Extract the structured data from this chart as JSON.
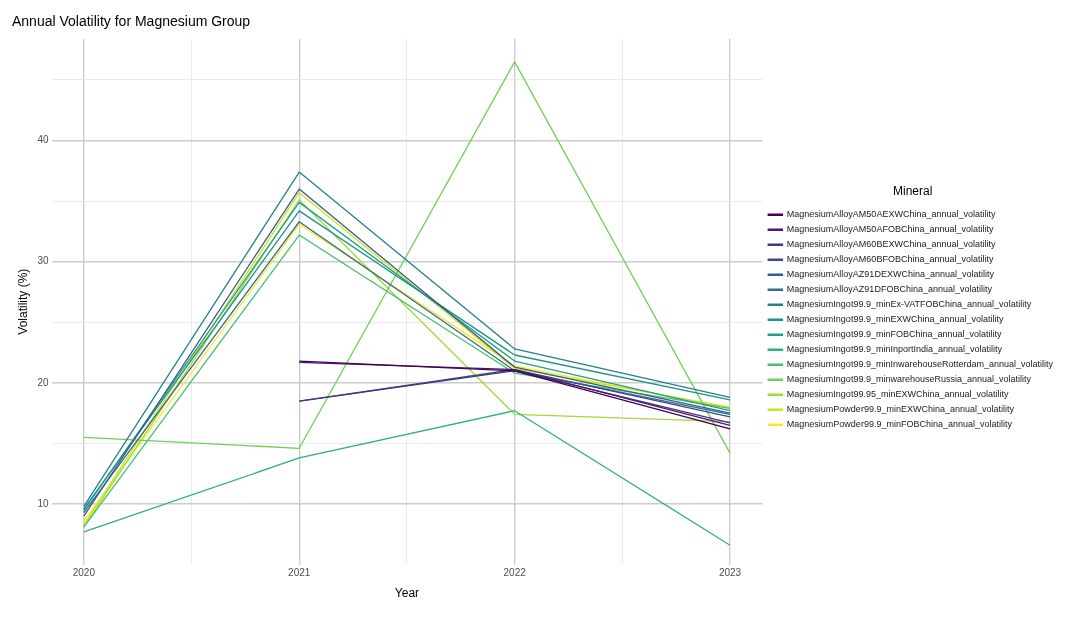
{
  "chart_data": {
    "type": "line",
    "title": "Annual Volatility for Magnesium Group",
    "xlabel": "Year",
    "ylabel": "Volatility (%)",
    "legend_title": "Mineral",
    "legend": "right",
    "grid": true,
    "marker": "none",
    "line_style": "solid",
    "xlim": [
      2019.85,
      2023.15
    ],
    "xticks": [
      2020,
      {
        "value": 2020.5,
        "label": null
      },
      2021,
      {
        "value": 2021.5,
        "label": null
      },
      2022,
      {
        "value": 2022.5,
        "label": null
      },
      2023
    ],
    "ylim": [
      5.0,
      48.4
    ],
    "yticks": [
      10,
      {
        "value": 15,
        "label": null
      },
      20,
      {
        "value": 25,
        "label": null
      },
      30,
      {
        "value": 35,
        "label": null
      },
      40,
      {
        "value": 45,
        "label": null
      }
    ],
    "x": [
      2020,
      2021,
      2022,
      2023
    ],
    "series": [
      {
        "name": "MagnesiumAlloyAM50AEXWChina_annual_volatility",
        "color": "#440154",
        "values": [
          null,
          21.8,
          21.0,
          16.2
        ]
      },
      {
        "name": "MagnesiumAlloyAM50AFOBChina_annual_volatility",
        "color": "#481b6d",
        "values": [
          null,
          21.7,
          21.1,
          16.5
        ]
      },
      {
        "name": "MagnesiumAlloyAM60BEXWChina_annual_volatility",
        "color": "#46337e",
        "values": [
          null,
          18.5,
          21.0,
          16.7
        ]
      },
      {
        "name": "MagnesiumAlloyAM60BFOBChina_annual_volatility",
        "color": "#3f4889",
        "values": [
          null,
          18.5,
          21.1,
          17.2
        ]
      },
      {
        "name": "MagnesiumAlloyAZ91DEXWChina_annual_volatility",
        "color": "#365c8d",
        "values": [
          9.0,
          36.0,
          21.3,
          17.5
        ]
      },
      {
        "name": "MagnesiumAlloyAZ91DFOBChina_annual_volatility",
        "color": "#2e6e8e",
        "values": [
          9.3,
          33.3,
          21.0,
          17.4
        ]
      },
      {
        "name": "MagnesiumIngot99.9_minEx-VATFOBChina_annual_volatility",
        "color": "#277f8e",
        "values": [
          9.8,
          37.4,
          22.8,
          18.8
        ]
      },
      {
        "name": "MagnesiumIngot99.9_minEXWChina_annual_volatility",
        "color": "#21908c",
        "values": [
          9.6,
          34.2,
          22.3,
          18.6
        ]
      },
      {
        "name": "MagnesiumIngot99.9_minFOBChina_annual_volatility",
        "color": "#1fa187",
        "values": [
          9.5,
          34.9,
          21.8,
          17.7
        ]
      },
      {
        "name": "MagnesiumIngot99.9_minInportIndia_annual_volatility",
        "color": "#2db27d",
        "values": [
          7.7,
          13.8,
          17.7,
          6.6
        ]
      },
      {
        "name": "MagnesiumIngot99.9_minInwarehouseRotterdam_annual_volatility",
        "color": "#4ac16d",
        "values": [
          8.1,
          32.2,
          20.8,
          17.9
        ]
      },
      {
        "name": "MagnesiumIngot99.9_minwarehouseRussia_annual_volatility",
        "color": "#71cf57",
        "values": [
          15.5,
          14.6,
          46.5,
          14.2
        ]
      },
      {
        "name": "MagnesiumIngot99.95_minEXWChina_annual_volatility",
        "color": "#9fda3a",
        "values": [
          8.1,
          35.1,
          17.4,
          16.8
        ]
      },
      {
        "name": "MagnesiumPowder99.9_minEXWChina_annual_volatility",
        "color": "#cfe11c",
        "values": [
          8.3,
          35.7,
          21.2,
          18.0
        ]
      },
      {
        "name": "MagnesiumPowder99.9_minFOBChina_annual_volatility",
        "color": "#fde725",
        "values": [
          8.6,
          33.1,
          21.4,
          17.9
        ]
      }
    ]
  }
}
